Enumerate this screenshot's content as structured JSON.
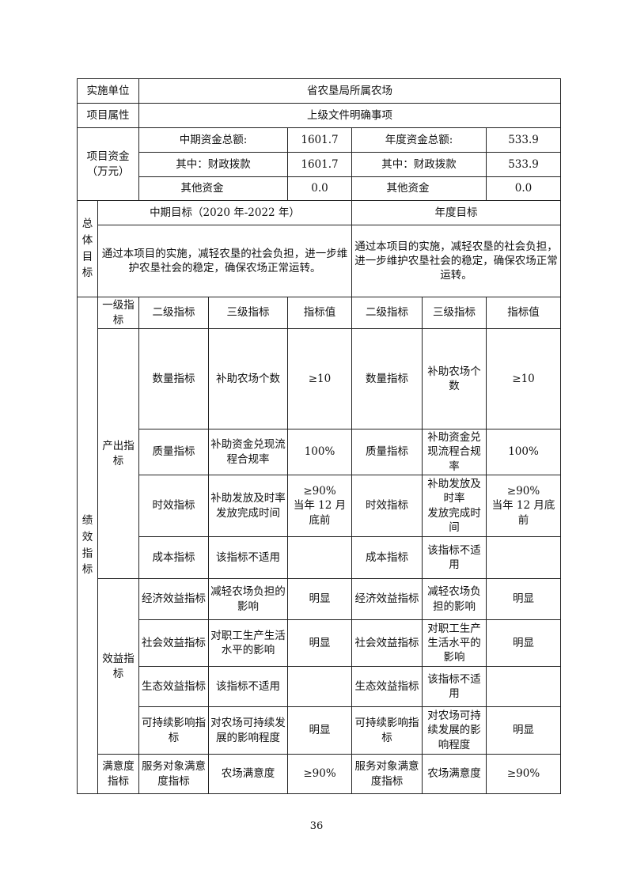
{
  "header": {
    "unit_label": "实施单位",
    "unit_value": "省农垦局所属农场",
    "attr_label": "项目属性",
    "attr_value": "上级文件明确事项"
  },
  "funding": {
    "label": "项目资金\n（万元）",
    "mid_total_label": "中期资金总额:",
    "mid_total": "1601.7",
    "year_total_label": "年度资金总额:",
    "year_total": "533.9",
    "mid_fiscal_label": "其中：财政拨款",
    "mid_fiscal": "1601.7",
    "year_fiscal_label": "其中：财政拨款",
    "year_fiscal": "533.9",
    "mid_other_label": "其他资金",
    "mid_other": "0.0",
    "year_other_label": "其他资金",
    "year_other": "0.0"
  },
  "goals": {
    "label": "总体目标",
    "mid_header": "中期目标（2020 年-2022 年）",
    "year_header": "年度目标",
    "mid_text": "通过本项目的实施，减轻农垦的社会负担，进一步维护农垦社会的稳定，确保农场正常运转。",
    "year_text": "通过本项目的实施，减轻农垦的社会负担，进一步维护农垦社会的稳定，确保农场正常运转。"
  },
  "performance": {
    "label": "绩效指标",
    "headers": [
      "一级指标",
      "二级指标",
      "三级指标",
      "指标值",
      "二级指标",
      "三级指标",
      "指标值"
    ],
    "groups": [
      {
        "level1": "产出指标",
        "rows": [
          {
            "l2": "数量指标",
            "l3": "补助农场个数",
            "val": "≥10",
            "l2y": "数量指标",
            "l3y": "补助农场个数",
            "valy": "≥10"
          },
          {
            "l2": "质量指标",
            "l3": "补助资金兑现流程合规率",
            "val": "100%",
            "l2y": "质量指标",
            "l3y": "补助资金兑现流程合规率",
            "valy": "100%"
          },
          {
            "l2": "时效指标",
            "l3": "补助发放及时率\n发放完成时间",
            "val": "≥90%\n当年 12 月底前",
            "l2y": "时效指标",
            "l3y": "补助发放及时率\n发放完成时间",
            "valy": "≥90%\n当年 12 月底前"
          },
          {
            "l2": "成本指标",
            "l3": "该指标不适用",
            "val": "",
            "l2y": "成本指标",
            "l3y": "该指标不适用",
            "valy": ""
          }
        ]
      },
      {
        "level1": "效益指标",
        "rows": [
          {
            "l2": "经济效益指标",
            "l3": "减轻农场负担的影响",
            "val": "明显",
            "l2y": "经济效益指标",
            "l3y": "减轻农场负担的影响",
            "valy": "明显"
          },
          {
            "l2": "社会效益指标",
            "l3": "对职工生产生活水平的影响",
            "val": "明显",
            "l2y": "社会效益指标",
            "l3y": "对职工生产生活水平的影响",
            "valy": "明显"
          },
          {
            "l2": "生态效益指标",
            "l3": "该指标不适用",
            "val": "",
            "l2y": "生态效益指标",
            "l3y": "该指标不适用",
            "valy": ""
          },
          {
            "l2": "可持续影响指标",
            "l3": "对农场可持续发展的影响程度",
            "val": "明显",
            "l2y": "可持续影响指标",
            "l3y": "对农场可持续发展的影响程度",
            "valy": "明显"
          }
        ]
      },
      {
        "level1": "满意度指标",
        "rows": [
          {
            "l2": "服务对象满意度指标",
            "l3": "农场满意度",
            "val": "≥90%",
            "l2y": "服务对象满意度指标",
            "l3y": "农场满意度",
            "valy": "≥90%"
          }
        ]
      }
    ]
  },
  "page_number": "36"
}
